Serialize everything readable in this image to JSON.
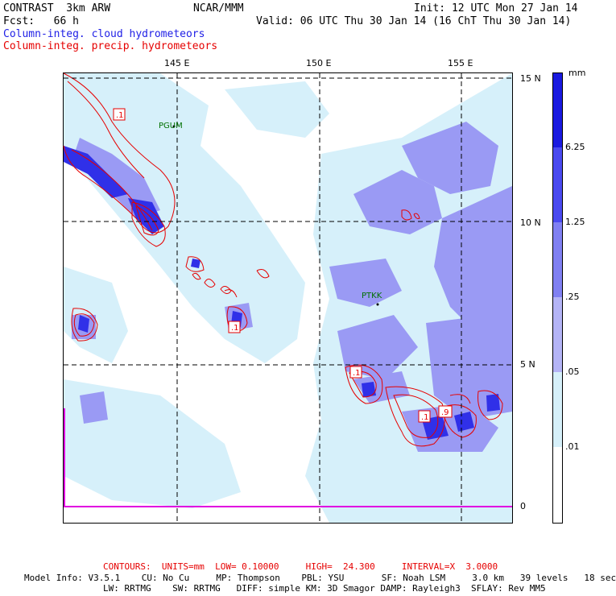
{
  "header": {
    "left_line1": "CONTRAST  3km ARW",
    "center_line1": "NCAR/MMM",
    "right_line1": "Init: 12 UTC Mon 27 Jan 14",
    "left_line2": "Fcst:   66 h",
    "right_line2": "Valid: 06 UTC Thu 30 Jan 14 (16 ChT Thu 30 Jan 14)",
    "field1": "Column-integ. cloud hydrometeors",
    "field2": "Column-integ. precip. hydrometeors"
  },
  "axes": {
    "lon_labels": [
      "145 E",
      "150 E",
      "155 E"
    ],
    "lat_labels": [
      "15 N",
      "10 N",
      "5 N",
      "0"
    ]
  },
  "stations": [
    "PGUM",
    "PTKK"
  ],
  "contour_labels": [
    ".1",
    ".1",
    ".1",
    ".1",
    ".9"
  ],
  "legend": {
    "unit": "mm",
    "ticks": [
      "6.25",
      "1.25",
      ".25",
      ".05",
      ".01"
    ],
    "colors": [
      "#1a1ae0",
      "#4a4af0",
      "#8080f2",
      "#b4b4f6",
      "#d6f0fa",
      "#ffffff"
    ]
  },
  "colors": {
    "cloud": "#1e1ee6",
    "precip": "#e60000",
    "light_fill": "#d6f0fa",
    "mid_fill": "#9a9af4",
    "dark_fill": "#3030e8"
  },
  "footer": {
    "contours": "CONTOURS:  UNITS=mm  LOW= 0.10000     HIGH=  24.300     INTERVAL=X  3.0000",
    "model_line1": "Model Info: V3.5.1    CU: No Cu     MP: Thompson    PBL: YSU       SF: Noah LSM     3.0 km   39 levels   18 sec",
    "model_line2": "LW: RRTMG    SW: RRTMG   DIFF: simple KM: 3D Smagor DAMP: Rayleigh3  SFLAY: Rev MM5"
  }
}
